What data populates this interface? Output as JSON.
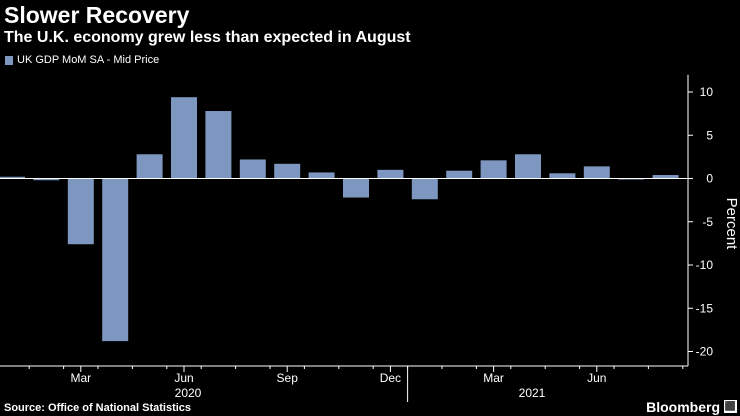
{
  "title": "Slower Recovery",
  "subtitle": "The U.K. economy grew less than expected in August",
  "source": "Source: Office of National Statistics",
  "brand": "Bloomberg",
  "colors": {
    "bar": "#7e97c1",
    "axis": "#ffffff",
    "background": "#000000"
  },
  "chart_data": {
    "type": "bar",
    "title": "Slower Recovery",
    "subtitle": "The U.K. economy grew less than expected in August",
    "legend": "UK GDP MoM SA - Mid Price",
    "legend_position": "top-left",
    "ylabel": "Percent",
    "ylim": [
      -21,
      12
    ],
    "yticks": [
      10,
      5,
      0,
      -5,
      -10,
      -15,
      -20
    ],
    "ytick_labels": [
      "10",
      "5",
      "0",
      "-5",
      "-10",
      "-15",
      "-20"
    ],
    "grid": false,
    "categories": [
      "2020-01",
      "2020-02",
      "2020-03",
      "2020-04",
      "2020-05",
      "2020-06",
      "2020-07",
      "2020-08",
      "2020-09",
      "2020-10",
      "2020-11",
      "2020-12",
      "2021-01",
      "2021-02",
      "2021-03",
      "2021-04",
      "2021-05",
      "2021-06",
      "2021-07",
      "2021-08"
    ],
    "values": [
      0.2,
      -0.2,
      -7.6,
      -18.8,
      2.8,
      9.4,
      7.8,
      2.2,
      1.7,
      0.7,
      -2.2,
      1.0,
      -2.4,
      0.9,
      2.1,
      2.8,
      0.6,
      1.4,
      -0.1,
      0.4
    ],
    "xtick_labels": [
      {
        "category": "2020-03",
        "label": "Mar"
      },
      {
        "category": "2020-06",
        "label": "Jun"
      },
      {
        "category": "2020-09",
        "label": "Sep"
      },
      {
        "category": "2020-12",
        "label": "Dec"
      },
      {
        "category": "2021-03",
        "label": "Mar"
      },
      {
        "category": "2021-06",
        "label": "Jun"
      }
    ],
    "year_labels": [
      {
        "category": "2020-06",
        "label": "2020"
      },
      {
        "category": "2021-04",
        "label": "2021"
      }
    ]
  }
}
